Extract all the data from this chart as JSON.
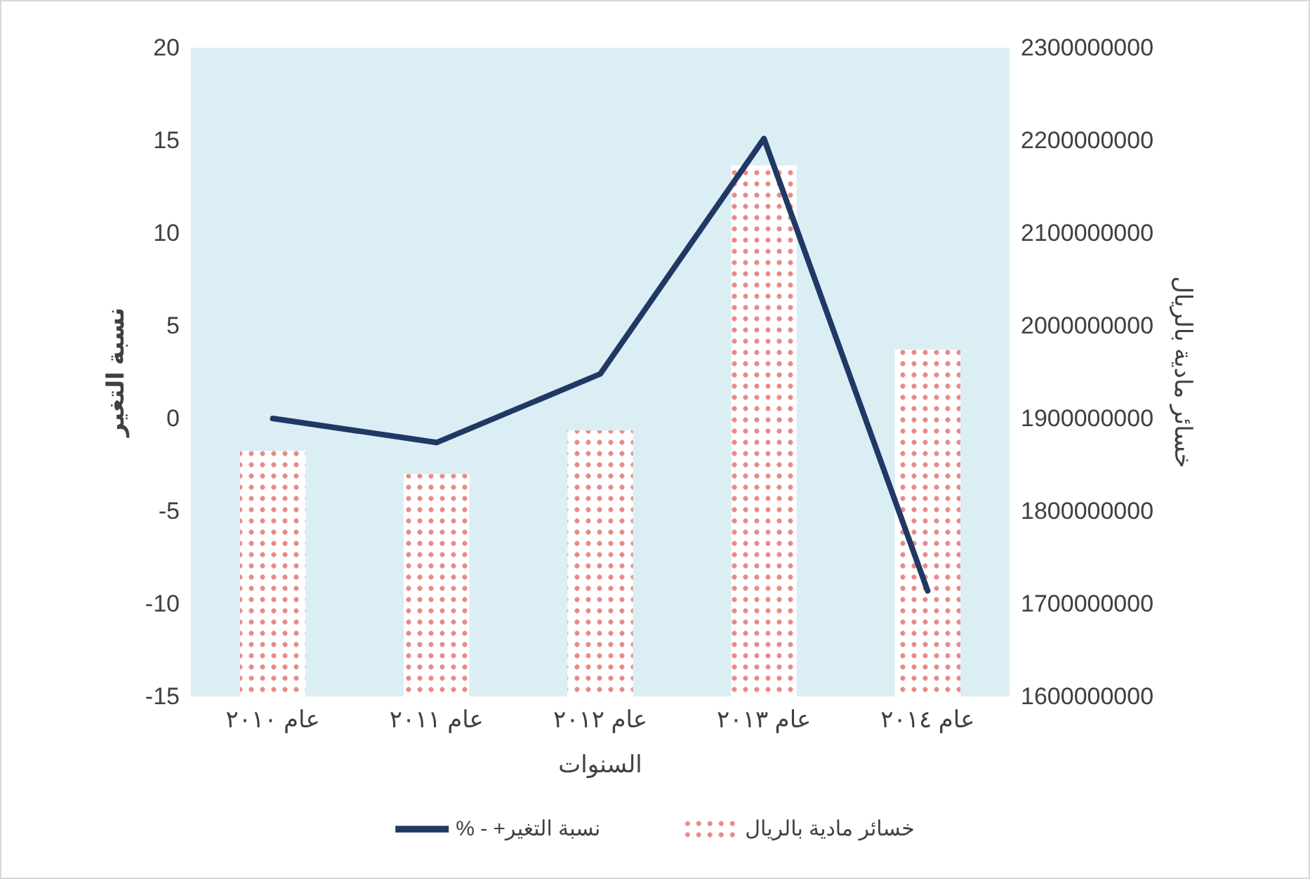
{
  "chart_data": {
    "type": "bar",
    "xlabel": "السنوات",
    "ylabel": "نسبة التغير",
    "y2label": "خسائر مادية بالريال",
    "categories": [
      "عام ٢٠١٠",
      "عام ٢٠١١",
      "عام ٢٠١٢",
      "عام ٢٠١٣",
      "عام ٢٠١٤"
    ],
    "series": [
      {
        "name": "خسائر مادية بالريال",
        "axis": "y2",
        "color": "#e88a8a",
        "values": [
          1865000000,
          1840000000,
          1887000000,
          2173000000,
          1974000000
        ]
      },
      {
        "name": "% - +نسبة التغير",
        "type": "line",
        "color": "#203864",
        "values": [
          0,
          -1.3,
          2.4,
          15.1,
          -9.3
        ]
      }
    ],
    "ylim": [
      -15,
      20
    ],
    "yticks": [
      -15,
      -10,
      -5,
      0,
      5,
      10,
      15,
      20
    ],
    "y2lim": [
      1600000000,
      2300000000
    ],
    "y2ticks": [
      1600000000,
      1700000000,
      1800000000,
      1900000000,
      2000000000,
      2100000000,
      2200000000,
      2300000000
    ],
    "legend": "bottom",
    "grid": false,
    "marker": "none",
    "line_style": "solid"
  }
}
